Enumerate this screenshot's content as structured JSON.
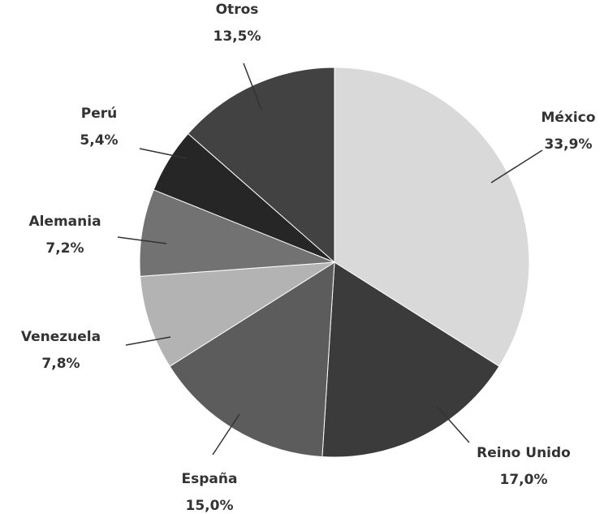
{
  "chart_data": {
    "type": "pie",
    "categories": [
      "México",
      "Reino Unido",
      "España",
      "Venezuela",
      "Alemania",
      "Perú",
      "Otros"
    ],
    "values": [
      33.9,
      17.0,
      15.0,
      7.8,
      7.2,
      5.4,
      13.5
    ],
    "value_labels": [
      "33,9%",
      "17,0%",
      "15,0%",
      "7,8%",
      "7,2%",
      "5,4%",
      "13,5%"
    ],
    "colors": [
      "#d9d9d9",
      "#3b3b3b",
      "#5c5c5c",
      "#b3b3b3",
      "#727272",
      "#262626",
      "#424242"
    ]
  }
}
